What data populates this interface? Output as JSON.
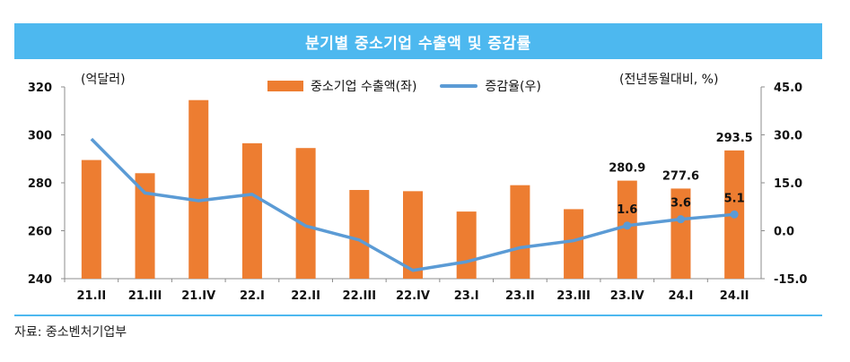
{
  "title": "분기별 중소기업 수출액 및 증감률",
  "left_unit": "(억달러)",
  "right_unit": "(전년동월대비, %)",
  "source": "자료: 중소벤처기업부",
  "colors": {
    "bar": "#ed7d31",
    "line": "#5b9bd5",
    "title_bg": "#4db8ef"
  },
  "chart_data": {
    "type": "bar",
    "categories": [
      "21.II",
      "21.III",
      "21.IV",
      "22.I",
      "22.II",
      "22.III",
      "22.IV",
      "23.I",
      "23.II",
      "23.III",
      "23.IV",
      "24.I",
      "24.II"
    ],
    "series": [
      {
        "name": "중소기업 수출액(좌)",
        "type": "bar",
        "axis": "left",
        "values": [
          289.5,
          284.0,
          314.5,
          296.5,
          294.5,
          277.0,
          276.5,
          268.0,
          279.0,
          269.0,
          280.9,
          277.6,
          293.5
        ]
      },
      {
        "name": "증감율(우)",
        "type": "line",
        "axis": "right",
        "values": [
          28.7,
          11.8,
          9.4,
          11.4,
          1.5,
          -2.9,
          -12.4,
          -9.7,
          -5.3,
          -3.1,
          1.6,
          3.6,
          5.1
        ]
      }
    ],
    "bar_labels": {
      "10": "280.9",
      "11": "277.6",
      "12": "293.5"
    },
    "line_labels": {
      "10": "1.6",
      "11": "3.6",
      "12": "5.1"
    },
    "y_left": {
      "min": 240,
      "max": 320,
      "ticks": [
        "240",
        "260",
        "280",
        "300",
        "320"
      ]
    },
    "y_right": {
      "min": -15,
      "max": 45,
      "ticks": [
        "-15.0",
        "0.0",
        "15.0",
        "30.0",
        "45.0"
      ]
    },
    "legend_placement": "top",
    "grid": false
  }
}
